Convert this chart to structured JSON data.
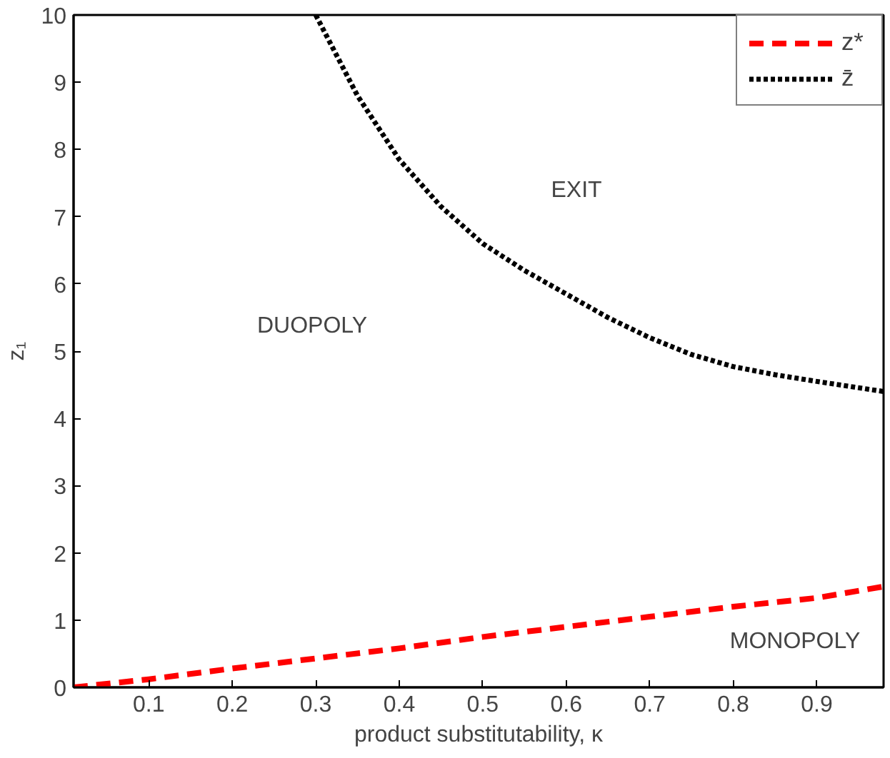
{
  "chart_data": {
    "type": "line",
    "xlabel": "product substitutability, κ",
    "ylabel": "z₁",
    "xlim": [
      0.01,
      0.98
    ],
    "ylim": [
      0,
      10
    ],
    "xticks": [
      0.1,
      0.2,
      0.3,
      0.4,
      0.5,
      0.6,
      0.7,
      0.8,
      0.9
    ],
    "yticks": [
      0,
      1,
      2,
      3,
      4,
      5,
      6,
      7,
      8,
      9,
      10
    ],
    "grid": false,
    "legend": "top right",
    "series": [
      {
        "name": "z*",
        "color": "#ff0000",
        "line_style": "dashed",
        "x": [
          0.01,
          0.1,
          0.2,
          0.3,
          0.4,
          0.5,
          0.6,
          0.7,
          0.8,
          0.9,
          0.98
        ],
        "values": [
          0,
          0.12,
          0.28,
          0.43,
          0.58,
          0.75,
          0.9,
          1.05,
          1.2,
          1.33,
          1.5
        ]
      },
      {
        "name": "z̄",
        "color": "#000000",
        "line_style": "dotted",
        "x": [
          0.3,
          0.35,
          0.4,
          0.45,
          0.5,
          0.55,
          0.6,
          0.65,
          0.7,
          0.75,
          0.8,
          0.85,
          0.9,
          0.98
        ],
        "values": [
          10,
          8.8,
          7.85,
          7.15,
          6.6,
          6.2,
          5.85,
          5.5,
          5.2,
          4.95,
          4.77,
          4.65,
          4.55,
          4.4
        ]
      }
    ],
    "annotations": [
      "EXIT",
      "DUOPOLY",
      "MONOPOLY"
    ]
  }
}
